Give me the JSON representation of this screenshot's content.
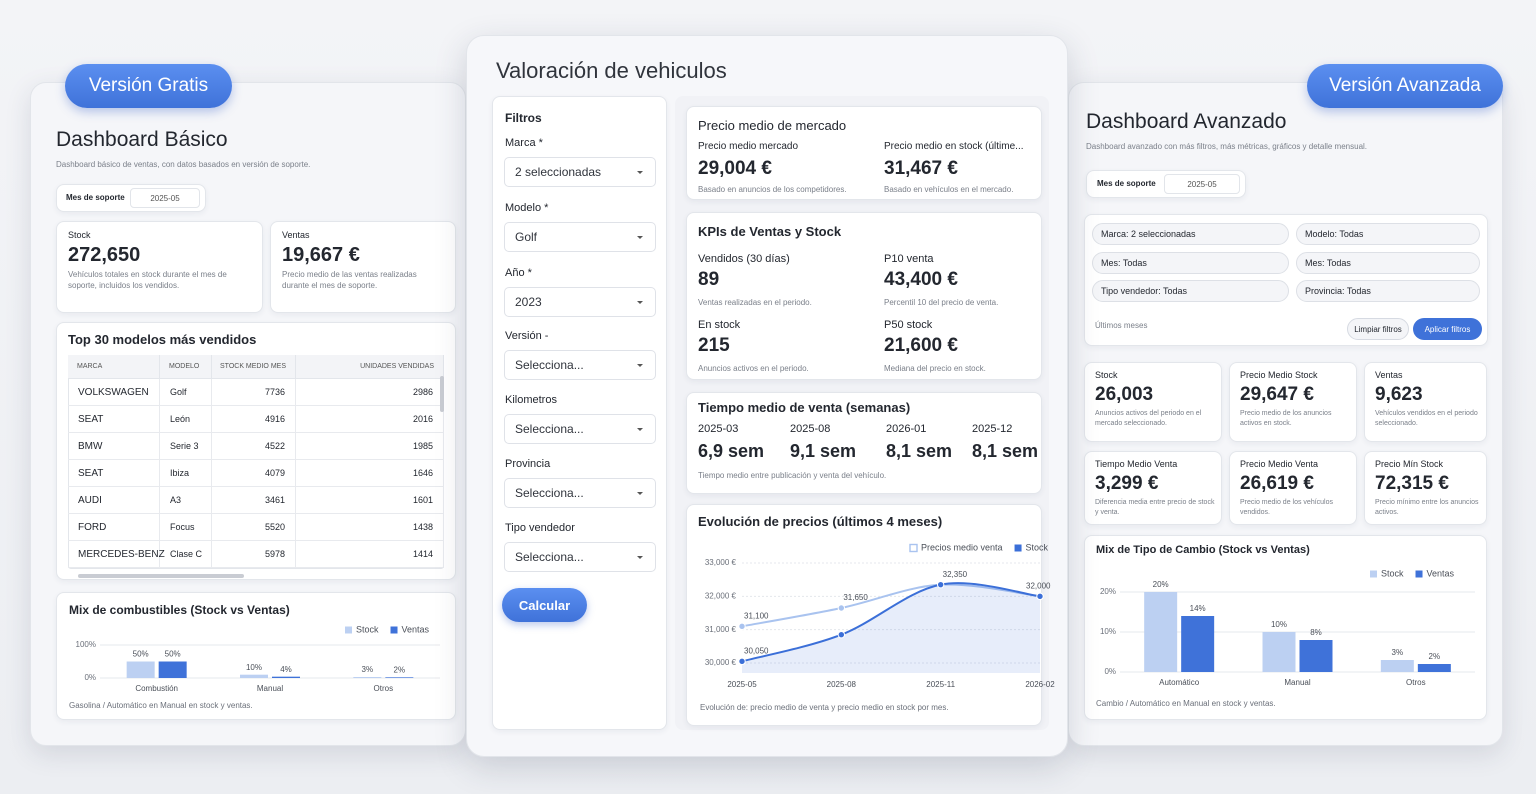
{
  "free": {
    "badge": "Versión Gratis",
    "title": "Dashboard Básico",
    "description": "Dashboard básico de ventas, con datos basados en versión de soporte.",
    "filter": {
      "label": "Mes de soporte",
      "value": "2025-05"
    },
    "kpis": [
      {
        "label": "Stock",
        "value": "272,650",
        "note": "Vehículos totales en stock durante el mes de soporte, incluidos los vendidos."
      },
      {
        "label": "Ventas",
        "value": "19,667 €",
        "note": "Precio medio de las ventas realizadas durante el mes de soporte."
      }
    ],
    "table": {
      "title": "Top 30 modelos más vendidos",
      "columns": [
        "MARCA",
        "MODELO",
        "STOCK MEDIO MES",
        "UNIDADES VENDIDAS"
      ],
      "rows": [
        [
          "VOLKSWAGEN",
          "Golf",
          "7736",
          "2986"
        ],
        [
          "SEAT",
          "León",
          "4916",
          "2016"
        ],
        [
          "BMW",
          "Serie 3",
          "4522",
          "1985"
        ],
        [
          "SEAT",
          "Ibiza",
          "4079",
          "1646"
        ],
        [
          "AUDI",
          "A3",
          "3461",
          "1601"
        ],
        [
          "FORD",
          "Focus",
          "5520",
          "1438"
        ],
        [
          "MERCEDES-BENZ",
          "Clase C",
          "5978",
          "1414"
        ]
      ]
    },
    "chart": {
      "type": "bar",
      "title": "Mix de combustibles (Stock vs Ventas)",
      "categories": [
        "Combustión",
        "Manual",
        "Otros"
      ],
      "series": [
        {
          "name": "Stock",
          "color": "#bcd0f2",
          "values": [
            50,
            10,
            3
          ],
          "value_labels": [
            "50%",
            "10%",
            "3%"
          ]
        },
        {
          "name": "Ventas",
          "color": "#3f72d9",
          "values": [
            50,
            4,
            2
          ],
          "value_labels": [
            "50%",
            "4%",
            "2%"
          ]
        }
      ],
      "ylim": [
        0,
        100
      ],
      "yticks": [
        {
          "value": 0,
          "label": "0%"
        },
        {
          "value": 100,
          "label": "100%"
        }
      ],
      "legend": "top-right",
      "footnote": "Gasolina / Automático en Manual en stock y ventas."
    }
  },
  "center": {
    "title": "Valoración de vehiculos",
    "filters": {
      "title": "Filtros",
      "fields": [
        {
          "label": "Marca *",
          "value": "2 seleccionadas"
        },
        {
          "label": "Modelo *",
          "value": "Golf"
        },
        {
          "label": "Año *",
          "value": "2023"
        },
        {
          "label": "Versión -",
          "value": "Selecciona..."
        },
        {
          "label": "Kilometros",
          "value": "Selecciona..."
        },
        {
          "label": "Provincia",
          "value": "Selecciona..."
        },
        {
          "label": "Tipo vendedor",
          "value": "Selecciona..."
        }
      ],
      "button": "Calcular"
    },
    "market": {
      "title": "Precio medio de mercado",
      "items": [
        {
          "label": "Precio medio mercado",
          "value": "29,004 €",
          "note": "Basado en anuncios de los competidores."
        },
        {
          "label": "Precio medio en stock (últime...",
          "value": "31,467 €",
          "note": "Basado en vehículos en el mercado."
        }
      ]
    },
    "kpis": {
      "title": "KPIs de Ventas y Stock",
      "items": [
        {
          "label": "Vendidos (30 días)",
          "value": "89",
          "note": "Ventas realizadas en el periodo."
        },
        {
          "label": "P10 venta",
          "value": "43,400 €",
          "note": "Percentil 10 del precio de venta."
        },
        {
          "label": "En stock",
          "value": "215",
          "note": "Anuncios activos en el periodo."
        },
        {
          "label": "P50 stock",
          "value": "21,600 €",
          "note": "Mediana del precio en stock."
        }
      ]
    },
    "sale_time": {
      "title": "Tiempo medio de venta (semanas)",
      "items": [
        {
          "label": "2025-03",
          "value": "6,9 sem"
        },
        {
          "label": "2025-08",
          "value": "9,1 sem"
        },
        {
          "label": "2026-01",
          "value": "8,1 sem"
        },
        {
          "label": "2025-12",
          "value": "8,1 sem"
        }
      ],
      "note": "Tiempo medio entre publicación y venta del vehículo."
    },
    "chart": {
      "type": "line",
      "title": "Evolución de precios (últimos 4 meses)",
      "categories": [
        "2025-05",
        "2025-08",
        "2025-11",
        "2026-02"
      ],
      "series": [
        {
          "name": "Precios medio venta",
          "color": "#a9c3ef",
          "values": [
            31100,
            31650,
            32350,
            32000
          ],
          "value_labels": [
            "31,100",
            "31,650",
            "32,350",
            "32,000"
          ]
        },
        {
          "name": "Stock",
          "color": "#3b6fd8",
          "values": [
            30050,
            30850,
            32350,
            32000
          ],
          "value_labels": [
            "30,050",
            null,
            null,
            null
          ]
        }
      ],
      "ylim": [
        30000,
        33000
      ],
      "yticks": [
        {
          "value": 30000,
          "label": "30,000 €"
        },
        {
          "value": 31000,
          "label": "31,000 €"
        },
        {
          "value": 32000,
          "label": "32,000 €"
        },
        {
          "value": 33000,
          "label": "33,000 €"
        }
      ],
      "legend": "top-right",
      "footnote": "Evolución de: precio medio de venta y precio medio en stock por mes."
    }
  },
  "advanced": {
    "badge": "Versión Avanzada",
    "title": "Dashboard Avanzado",
    "description": "Dashboard avanzado con más filtros, más métricas, gráficos y detalle mensual.",
    "filter": {
      "label": "Mes de soporte",
      "value": "2025-05"
    },
    "chips": [
      "Marca: 2 seleccionadas",
      "Modelo: Todas",
      "Mes: Todas",
      "Mes: Todas",
      "Tipo vendedor: Todas",
      "Provincia: Todas"
    ],
    "chips_note": "Últimos meses",
    "buttons": [
      "Limpiar filtros",
      "Aplicar filtros"
    ],
    "kpis": [
      {
        "label": "Stock",
        "value": "26,003",
        "note": "Anuncios activos del periodo en el mercado seleccionado."
      },
      {
        "label": "Precio Medio Stock",
        "value": "29,647 €",
        "note": "Precio medio de los anuncios activos en stock."
      },
      {
        "label": "Ventas",
        "value": "9,623",
        "note": "Vehículos vendidos en el periodo seleccionado."
      },
      {
        "label": "Tiempo Medio Venta",
        "value": "3,299 €",
        "note": "Diferencia media entre precio de stock y venta."
      },
      {
        "label": "Precio Medio Venta",
        "value": "26,619 €",
        "note": "Precio medio de los vehículos vendidos."
      },
      {
        "label": "Precio Mín Stock",
        "value": "72,315 €",
        "note": "Precio mínimo entre los anuncios activos."
      }
    ],
    "chart": {
      "type": "bar",
      "title": "Mix de Tipo de Cambio (Stock vs Ventas)",
      "categories": [
        "Automático",
        "Manual",
        "Otros"
      ],
      "series": [
        {
          "name": "Stock",
          "color": "#bcd0f2",
          "values": [
            20,
            10,
            3
          ],
          "value_labels": [
            "20%",
            "10%",
            "3%"
          ]
        },
        {
          "name": "Ventas",
          "color": "#3f72d9",
          "values": [
            14,
            8,
            2
          ],
          "value_labels": [
            "14%",
            "8%",
            "2%"
          ]
        }
      ],
      "ylim": [
        0,
        20
      ],
      "yticks": [
        {
          "value": 0,
          "label": "0%"
        },
        {
          "value": 10,
          "label": "10%"
        },
        {
          "value": 20,
          "label": "20%"
        }
      ],
      "legend": "top-right",
      "footnote": "Cambio / Automático en Manual en stock y ventas."
    }
  }
}
